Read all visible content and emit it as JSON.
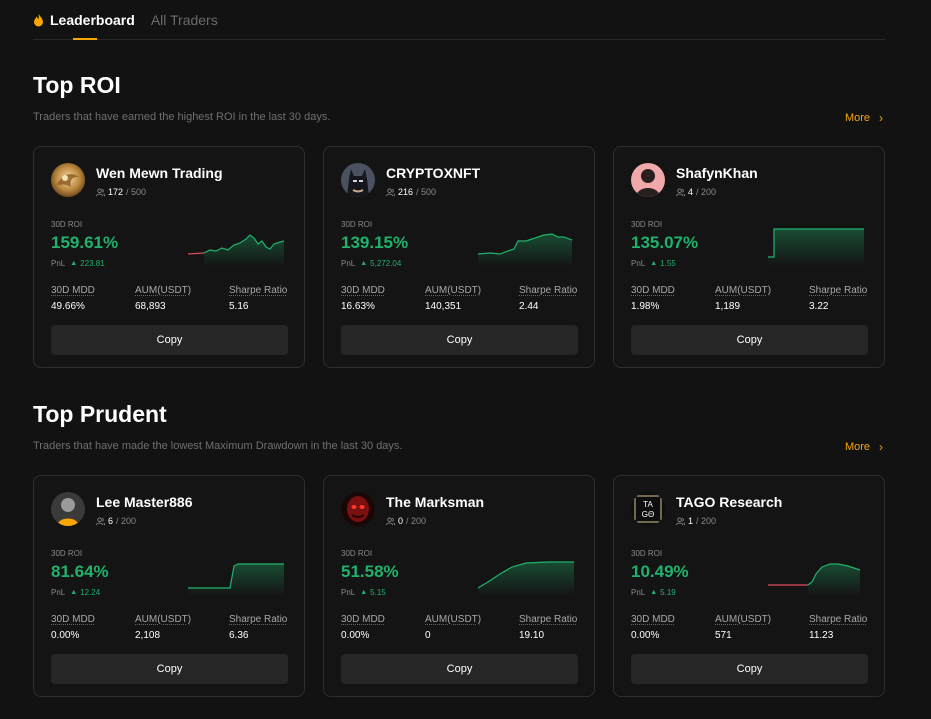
{
  "tabs": [
    {
      "label": "Leaderboard",
      "active": true
    },
    {
      "label": "All Traders",
      "active": false
    }
  ],
  "sections": [
    {
      "title": "Top ROI",
      "subtitle": "Traders that have earned the highest ROI in the last 30 days.",
      "more_label": "More",
      "cards": [
        {
          "name": "Wen Mewn Trading",
          "followers_current": "172",
          "followers_max": "/ 500",
          "roi_label": "30D ROI",
          "roi": "159.61%",
          "pnl_label": "PnL",
          "pnl": "223.81",
          "mdd_label": "30D MDD",
          "mdd": "49.66%",
          "aum_label": "AUM(USDT)",
          "aum": "68,893",
          "sharpe_label": "Sharpe Ratio",
          "sharpe": "5.16",
          "copy_label": "Copy",
          "avatar": "golden-dragon-avatar"
        },
        {
          "name": "CRYPTOXNFT",
          "followers_current": "216",
          "followers_max": "/ 500",
          "roi_label": "30D ROI",
          "roi": "139.15%",
          "pnl_label": "PnL",
          "pnl": "5,272.04",
          "mdd_label": "30D MDD",
          "mdd": "16.63%",
          "aum_label": "AUM(USDT)",
          "aum": "140,351",
          "sharpe_label": "Sharpe Ratio",
          "sharpe": "2.44",
          "copy_label": "Copy",
          "avatar": "batman-avatar"
        },
        {
          "name": "ShafynKhan",
          "followers_current": "4",
          "followers_max": "/ 200",
          "roi_label": "30D ROI",
          "roi": "135.07%",
          "pnl_label": "PnL",
          "pnl": "1.55",
          "mdd_label": "30D MDD",
          "mdd": "1.98%",
          "aum_label": "AUM(USDT)",
          "aum": "1,189",
          "sharpe_label": "Sharpe Ratio",
          "sharpe": "3.22",
          "copy_label": "Copy",
          "avatar": "silhouette-avatar"
        }
      ]
    },
    {
      "title": "Top Prudent",
      "subtitle": "Traders that have made the lowest Maximum Drawdown in the last 30 days.",
      "more_label": "More",
      "cards": [
        {
          "name": "Lee Master886",
          "followers_current": "6",
          "followers_max": "/ 200",
          "roi_label": "30D ROI",
          "roi": "81.64%",
          "pnl_label": "PnL",
          "pnl": "12.24",
          "mdd_label": "30D MDD",
          "mdd": "0.00%",
          "aum_label": "AUM(USDT)",
          "aum": "2,108",
          "sharpe_label": "Sharpe Ratio",
          "sharpe": "6.36",
          "copy_label": "Copy",
          "avatar": "default-user-avatar"
        },
        {
          "name": "The Marksman",
          "followers_current": "0",
          "followers_max": "/ 200",
          "roi_label": "30D ROI",
          "roi": "51.58%",
          "pnl_label": "PnL",
          "pnl": "5.15",
          "mdd_label": "30D MDD",
          "mdd": "0.00%",
          "aum_label": "AUM(USDT)",
          "aum": "0",
          "sharpe_label": "Sharpe Ratio",
          "sharpe": "19.10",
          "copy_label": "Copy",
          "avatar": "red-mask-avatar"
        },
        {
          "name": "TAGO Research",
          "followers_current": "1",
          "followers_max": "/ 200",
          "roi_label": "30D ROI",
          "roi": "10.49%",
          "pnl_label": "PnL",
          "pnl": "5.19",
          "mdd_label": "30D MDD",
          "mdd": "0.00%",
          "aum_label": "AUM(USDT)",
          "aum": "571",
          "sharpe_label": "Sharpe Ratio",
          "sharpe": "11.23",
          "copy_label": "Copy",
          "avatar": "tago-logo-avatar",
          "avatar_text_1": "TA",
          "avatar_text_2": "GΘ"
        }
      ]
    }
  ],
  "colors": {
    "accent": "#f7a600",
    "positive": "#20b26c",
    "negative": "#e0495c"
  }
}
